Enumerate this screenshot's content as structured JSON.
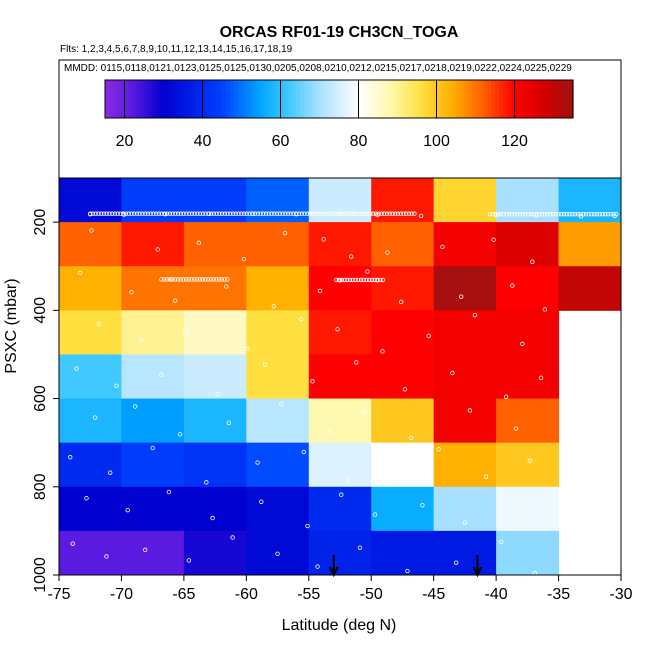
{
  "chart_data": {
    "type": "heatmap",
    "title": "ORCAS RF01-19 CH3CN_TOGA",
    "flights_label": "Flts: 1,2,3,4,5,6,7,8,9,10,11,12,13,14,15,16,17,18,19",
    "dates_label": "MMDD: 0115,0118,0121,0123,0125,0125,0130,0205,0208,0210,0212,0215,0217,0218,0219,0222,0224,0225,0229",
    "xlabel": "Latitude (deg N)",
    "ylabel": "PSXC (mbar)",
    "xlim": [
      -75,
      -30
    ],
    "ylim": [
      1000,
      100
    ],
    "xticks": [
      -75,
      -70,
      -65,
      -60,
      -55,
      -50,
      -45,
      -40,
      -35,
      -30
    ],
    "yticks": [
      200,
      400,
      600,
      800,
      1000
    ],
    "colorbar": {
      "range": [
        15,
        135
      ],
      "ticks": [
        20,
        40,
        60,
        80,
        100,
        120
      ],
      "stops": [
        {
          "v": 15,
          "c": "#8a2be2"
        },
        {
          "v": 22,
          "c": "#5a1ae0"
        },
        {
          "v": 30,
          "c": "#0000d0"
        },
        {
          "v": 45,
          "c": "#0040ff"
        },
        {
          "v": 55,
          "c": "#00a8ff"
        },
        {
          "v": 62,
          "c": "#40c8ff"
        },
        {
          "v": 70,
          "c": "#a8e0ff"
        },
        {
          "v": 80,
          "c": "#ffffff"
        },
        {
          "v": 88,
          "c": "#fff8b0"
        },
        {
          "v": 96,
          "c": "#ffe040"
        },
        {
          "v": 104,
          "c": "#ffb000"
        },
        {
          "v": 112,
          "c": "#ff6000"
        },
        {
          "v": 120,
          "c": "#ff0000"
        },
        {
          "v": 128,
          "c": "#d00000"
        },
        {
          "v": 135,
          "c": "#a01010"
        }
      ]
    },
    "lat_bins": [
      [
        -75,
        -70
      ],
      [
        -70,
        -65
      ],
      [
        -65,
        -60
      ],
      [
        -60,
        -55
      ],
      [
        -55,
        -50
      ],
      [
        -50,
        -45
      ],
      [
        -45,
        -40
      ],
      [
        -40,
        -35
      ],
      [
        -35,
        -30
      ]
    ],
    "p_bins": [
      [
        100,
        200
      ],
      [
        200,
        300
      ],
      [
        300,
        400
      ],
      [
        400,
        500
      ],
      [
        500,
        600
      ],
      [
        600,
        700
      ],
      [
        700,
        800
      ],
      [
        800,
        900
      ],
      [
        900,
        1000
      ]
    ],
    "values": [
      [
        32,
        44,
        44,
        48,
        74,
        118,
        98,
        70,
        58
      ],
      [
        112,
        118,
        112,
        112,
        118,
        112,
        122,
        126,
        106
      ],
      [
        104,
        110,
        110,
        104,
        120,
        118,
        134,
        120,
        130
      ],
      [
        96,
        90,
        86,
        96,
        118,
        120,
        122,
        122,
        null
      ],
      [
        62,
        72,
        74,
        96,
        120,
        120,
        122,
        122,
        null
      ],
      [
        58,
        54,
        58,
        72,
        88,
        100,
        122,
        112,
        null
      ],
      [
        40,
        44,
        42,
        46,
        76,
        80,
        104,
        100,
        null
      ],
      [
        30,
        30,
        30,
        32,
        40,
        56,
        70,
        78,
        null
      ],
      [
        22,
        22,
        28,
        32,
        38,
        36,
        36,
        68,
        null
      ]
    ],
    "arrows_lat": [
      -53,
      -41.5
    ],
    "sample_points": [
      [
        -72.5,
        182
      ],
      [
        -69.8,
        183
      ],
      [
        -66.5,
        182
      ],
      [
        -63,
        181
      ],
      [
        -59.5,
        181
      ],
      [
        -56,
        182
      ],
      [
        -52.5,
        182
      ],
      [
        -49.5,
        184
      ],
      [
        -46,
        186
      ],
      [
        -40,
        184
      ],
      [
        -36.8,
        185
      ],
      [
        -33.2,
        187
      ],
      [
        -30.5,
        186
      ],
      [
        -66,
        330
      ],
      [
        -63.5,
        330
      ],
      [
        -52.5,
        332
      ],
      [
        -49.5,
        332
      ],
      [
        -72.4,
        219
      ],
      [
        -67.1,
        262
      ],
      [
        -63.8,
        247
      ],
      [
        -60.2,
        284
      ],
      [
        -56.9,
        225
      ],
      [
        -53.8,
        239
      ],
      [
        -51.6,
        278
      ],
      [
        -48.7,
        269
      ],
      [
        -44.3,
        256
      ],
      [
        -40.2,
        240
      ],
      [
        -37.1,
        290
      ],
      [
        -73.3,
        315
      ],
      [
        -69.2,
        359
      ],
      [
        -65.7,
        378
      ],
      [
        -61.6,
        346
      ],
      [
        -57.8,
        391
      ],
      [
        -54.1,
        356
      ],
      [
        -50.3,
        312
      ],
      [
        -47.6,
        381
      ],
      [
        -42.8,
        369
      ],
      [
        -38.7,
        344
      ],
      [
        -36.1,
        398
      ],
      [
        -71.8,
        431
      ],
      [
        -68.4,
        468
      ],
      [
        -64.9,
        452
      ],
      [
        -59.9,
        487
      ],
      [
        -55.6,
        420
      ],
      [
        -52.7,
        443
      ],
      [
        -49.1,
        493
      ],
      [
        -45.4,
        458
      ],
      [
        -41.7,
        411
      ],
      [
        -37.9,
        476
      ],
      [
        -73.6,
        532
      ],
      [
        -70.4,
        571
      ],
      [
        -66.8,
        546
      ],
      [
        -62.3,
        590
      ],
      [
        -58.5,
        523
      ],
      [
        -54.7,
        561
      ],
      [
        -51.2,
        518
      ],
      [
        -47.3,
        579
      ],
      [
        -43.5,
        542
      ],
      [
        -39.2,
        596
      ],
      [
        -36.4,
        553
      ],
      [
        -72.1,
        643
      ],
      [
        -68.9,
        618
      ],
      [
        -65.3,
        681
      ],
      [
        -61.4,
        655
      ],
      [
        -57.2,
        612
      ],
      [
        -53.3,
        674
      ],
      [
        -50.6,
        632
      ],
      [
        -46.8,
        689
      ],
      [
        -42.1,
        627
      ],
      [
        -38.4,
        668
      ],
      [
        -74.1,
        733
      ],
      [
        -70.9,
        768
      ],
      [
        -67.5,
        712
      ],
      [
        -63.2,
        790
      ],
      [
        -59.1,
        745
      ],
      [
        -55.4,
        721
      ],
      [
        -51.9,
        784
      ],
      [
        -48.2,
        758
      ],
      [
        -44.6,
        715
      ],
      [
        -40.8,
        777
      ],
      [
        -37.3,
        741
      ],
      [
        -72.8,
        826
      ],
      [
        -69.5,
        853
      ],
      [
        -66.2,
        812
      ],
      [
        -62.7,
        871
      ],
      [
        -58.8,
        834
      ],
      [
        -55.1,
        889
      ],
      [
        -52.4,
        818
      ],
      [
        -49.7,
        863
      ],
      [
        -45.9,
        842
      ],
      [
        -42.5,
        881
      ],
      [
        -38.1,
        857
      ],
      [
        -73.9,
        929
      ],
      [
        -71.2,
        958
      ],
      [
        -68.1,
        943
      ],
      [
        -64.6,
        967
      ],
      [
        -61.1,
        915
      ],
      [
        -57.5,
        952
      ],
      [
        -54.3,
        981
      ],
      [
        -50.9,
        938
      ],
      [
        -47.1,
        991
      ],
      [
        -43.2,
        972
      ],
      [
        -39.6,
        925
      ],
      [
        -36.9,
        996
      ]
    ]
  }
}
